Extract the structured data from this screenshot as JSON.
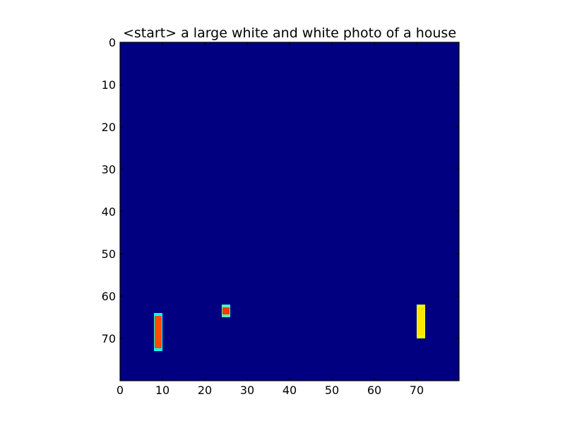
{
  "chart_data": {
    "type": "heatmap",
    "title": "<start> a large white and white photo of a house",
    "xlabel": "",
    "ylabel": "",
    "xlim": [
      0,
      80
    ],
    "ylim": [
      80,
      0
    ],
    "y_axis_inverted": true,
    "grid": false,
    "colormap": "jet",
    "background_value": 0.0,
    "x_ticks": [
      0,
      10,
      20,
      30,
      40,
      50,
      60,
      70
    ],
    "y_ticks": [
      0,
      10,
      20,
      30,
      40,
      50,
      60,
      70
    ],
    "x_tick_labels": [
      "0",
      "10",
      "20",
      "30",
      "40",
      "50",
      "60",
      "70"
    ],
    "y_tick_labels": [
      "0",
      "10",
      "20",
      "30",
      "40",
      "50",
      "60",
      "70"
    ],
    "hotspots": [
      {
        "x": [
          8,
          10
        ],
        "y": [
          64,
          73
        ],
        "value": 0.8,
        "edge_value": 0.38
      },
      {
        "x": [
          24,
          26
        ],
        "y": [
          62,
          65
        ],
        "value": 0.82,
        "edge_value": 0.45
      },
      {
        "x": [
          70,
          72
        ],
        "y": [
          62,
          70
        ],
        "value": 0.65,
        "edge_value": 0.6
      }
    ]
  }
}
